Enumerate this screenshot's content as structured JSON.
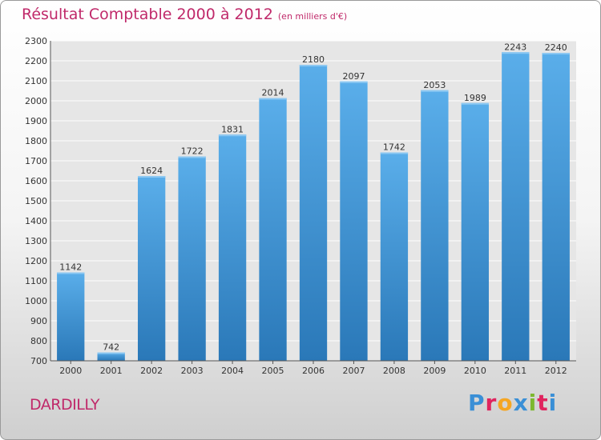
{
  "header": {
    "title": "Résultat Comptable 2000 à 2012",
    "subtitle": "(en milliers d'€)"
  },
  "footer": {
    "city": "DARDILLY",
    "logo_letters": [
      "P",
      "r",
      "o",
      "x",
      "i",
      "t",
      "i"
    ],
    "logo_colors": [
      "#3a8fd6",
      "#e0245e",
      "#f5a623",
      "#3a8fd6",
      "#7cb82f",
      "#e0245e",
      "#3a8fd6"
    ]
  },
  "chart_data": {
    "type": "bar",
    "categories": [
      "2000",
      "2001",
      "2002",
      "2003",
      "2004",
      "2005",
      "2006",
      "2007",
      "2008",
      "2009",
      "2010",
      "2011",
      "2012"
    ],
    "values": [
      1142,
      742,
      1624,
      1722,
      1831,
      2014,
      2180,
      2097,
      1742,
      2053,
      1989,
      2243,
      2240
    ],
    "title": "Résultat Comptable 2000 à 2012",
    "subtitle": "(en milliers d'€)",
    "ylim": [
      700,
      2300
    ],
    "yticks": [
      700,
      800,
      900,
      1000,
      1100,
      1200,
      1300,
      1400,
      1500,
      1600,
      1700,
      1800,
      1900,
      2000,
      2100,
      2200,
      2300
    ],
    "grid": true,
    "data_labels": true,
    "bar_color": "#4a9fe0"
  }
}
